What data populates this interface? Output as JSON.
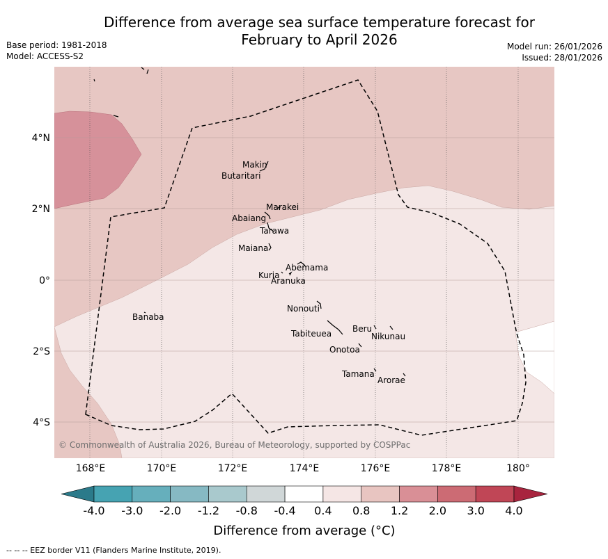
{
  "title_line1": "Difference from average sea surface temperature forecast for",
  "title_line2": "February to April 2026",
  "meta": {
    "base_period": "Base period: 1981-2018",
    "model": "Model: ACCESS-S2",
    "model_run": "Model run: 26/01/2026",
    "issued": "Issued: 28/01/2026"
  },
  "map": {
    "x_ticks": [
      "168°E",
      "170°E",
      "172°E",
      "174°E",
      "176°E",
      "178°E",
      "180°"
    ],
    "y_ticks": [
      "4°N",
      "2°N",
      "0°",
      "2°S",
      "4°S"
    ],
    "copyright": "© Commonwealth of Australia 2026, Bureau of Meteorology, supported by COSPPac",
    "islands": {
      "makin": "Makin",
      "butaritari": "Butaritari",
      "marakei": "Marakei",
      "abaiang": "Abaiang",
      "tarawa": "Tarawa",
      "maiana": "Maiana",
      "abemama": "Abemama",
      "kuria": "Kuria",
      "aranuka": "Aranuka",
      "nonouti": "Nonouti",
      "banaba": "Banaba",
      "beru": "Beru",
      "nikunau": "Nikunau",
      "tabiteuea": "Tabiteuea",
      "onotoa": "Onotoa",
      "tamana": "Tamana",
      "arorae": "Arorae"
    }
  },
  "colorbar": {
    "labels": [
      "-4.0",
      "-3.0",
      "-2.0",
      "-1.2",
      "-0.8",
      "-0.4",
      "0.4",
      "0.8",
      "1.2",
      "2.0",
      "3.0",
      "4.0"
    ],
    "colors": [
      "#2b7a8a",
      "#46a3b2",
      "#66afbc",
      "#86b9c3",
      "#a9c9cd",
      "#d0d7d8",
      "#ffffff",
      "#f5e6e5",
      "#e8c5c1",
      "#d98f96",
      "#cc6b74",
      "#c04656",
      "#a8243e"
    ],
    "label": "Difference from average (°C)"
  },
  "footer": "--  --  -- EEZ border V11 (Flanders Marine Institute, 2019).",
  "chart_data": {
    "type": "map",
    "title": "Difference from average sea surface temperature forecast for February to April 2026",
    "x_range_deg_E": [
      167.0,
      181.0
    ],
    "y_range_deg": [
      -5.0,
      6.0
    ],
    "units": "°C",
    "levels": [
      -4.0,
      -3.0,
      -2.0,
      -1.2,
      -0.8,
      -0.4,
      0.4,
      0.8,
      1.2,
      2.0,
      3.0,
      4.0
    ],
    "regions": [
      {
        "range": "0.8 to 1.2",
        "area": "north of about 2°N, plus south-west corner"
      },
      {
        "range": "1.2 to 2.0",
        "area": "north-west corner around 3–4.5°N, 167–169.5°E"
      },
      {
        "range": "0.4 to 0.8",
        "area": "central and southern Kiribati (Gilbert Islands)"
      },
      {
        "range": "-0.4 to 0.4",
        "area": "small area east of 180° near 2–3°S"
      }
    ]
  }
}
